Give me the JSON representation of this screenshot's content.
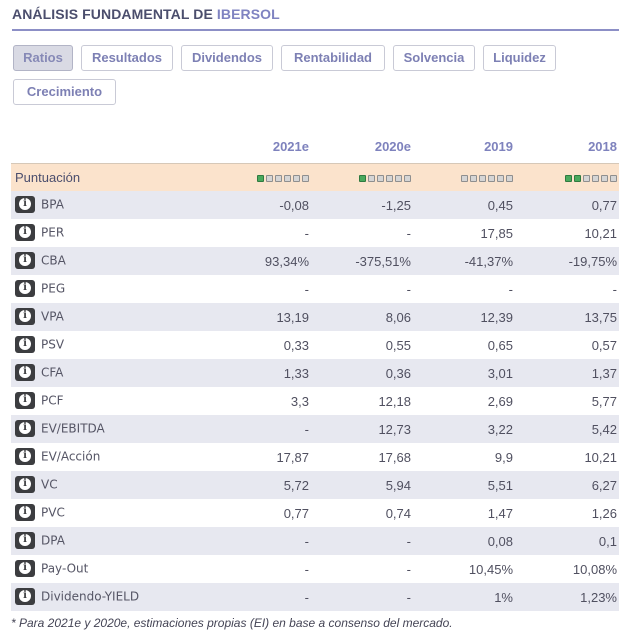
{
  "header": {
    "prefix": "ANÁLISIS FUNDAMENTAL DE",
    "company": "IBERSOL"
  },
  "tabs": [
    {
      "label": "Ratios",
      "active": true
    },
    {
      "label": "Resultados",
      "active": false
    },
    {
      "label": "Dividendos",
      "active": false
    },
    {
      "label": "Rentabilidad",
      "active": false
    },
    {
      "label": "Solvencia",
      "active": false
    },
    {
      "label": "Liquidez",
      "active": false
    },
    {
      "label": "Crecimiento",
      "active": false
    }
  ],
  "table": {
    "columns": [
      "2021e",
      "2020e",
      "2019",
      "2018"
    ],
    "score_row": {
      "label": "Puntuación",
      "scores": [
        1,
        1,
        0,
        2
      ],
      "max": 6
    },
    "info_icon": "info-icon",
    "rows": [
      {
        "metric": "BPA",
        "values": [
          "-0,08",
          "-1,25",
          "0,45",
          "0,77"
        ]
      },
      {
        "metric": "PER",
        "values": [
          "-",
          "-",
          "17,85",
          "10,21"
        ]
      },
      {
        "metric": "CBA",
        "values": [
          "93,34%",
          "-375,51%",
          "-41,37%",
          "-19,75%"
        ]
      },
      {
        "metric": "PEG",
        "values": [
          "-",
          "-",
          "-",
          "-"
        ]
      },
      {
        "metric": "VPA",
        "values": [
          "13,19",
          "8,06",
          "12,39",
          "13,75"
        ]
      },
      {
        "metric": "PSV",
        "values": [
          "0,33",
          "0,55",
          "0,65",
          "0,57"
        ]
      },
      {
        "metric": "CFA",
        "values": [
          "1,33",
          "0,36",
          "3,01",
          "1,37"
        ]
      },
      {
        "metric": "PCF",
        "values": [
          "3,3",
          "12,18",
          "2,69",
          "5,77"
        ]
      },
      {
        "metric": "EV/EBITDA",
        "values": [
          "-",
          "12,73",
          "3,22",
          "5,42"
        ]
      },
      {
        "metric": "EV/Acción",
        "values": [
          "17,87",
          "17,68",
          "9,9",
          "10,21"
        ]
      },
      {
        "metric": "VC",
        "values": [
          "5,72",
          "5,94",
          "5,51",
          "6,27"
        ]
      },
      {
        "metric": "PVC",
        "values": [
          "0,77",
          "0,74",
          "1,47",
          "1,26"
        ]
      },
      {
        "metric": "DPA",
        "values": [
          "-",
          "-",
          "0,08",
          "0,1"
        ]
      },
      {
        "metric": "Pay-Out",
        "values": [
          "-",
          "-",
          "10,45%",
          "10,08%"
        ]
      },
      {
        "metric": "Dividendo-YIELD",
        "values": [
          "-",
          "-",
          "1%",
          "1,23%"
        ]
      }
    ]
  },
  "footnote": "* Para 2021e y 2020e, estimaciones propias (EI) en base a consenso del mercado.",
  "colors": {
    "accent": "#7f83c1",
    "score_bg": "#fbe3cc",
    "dot_on": "#49a95d",
    "row_alt": "#e7e8f0"
  }
}
